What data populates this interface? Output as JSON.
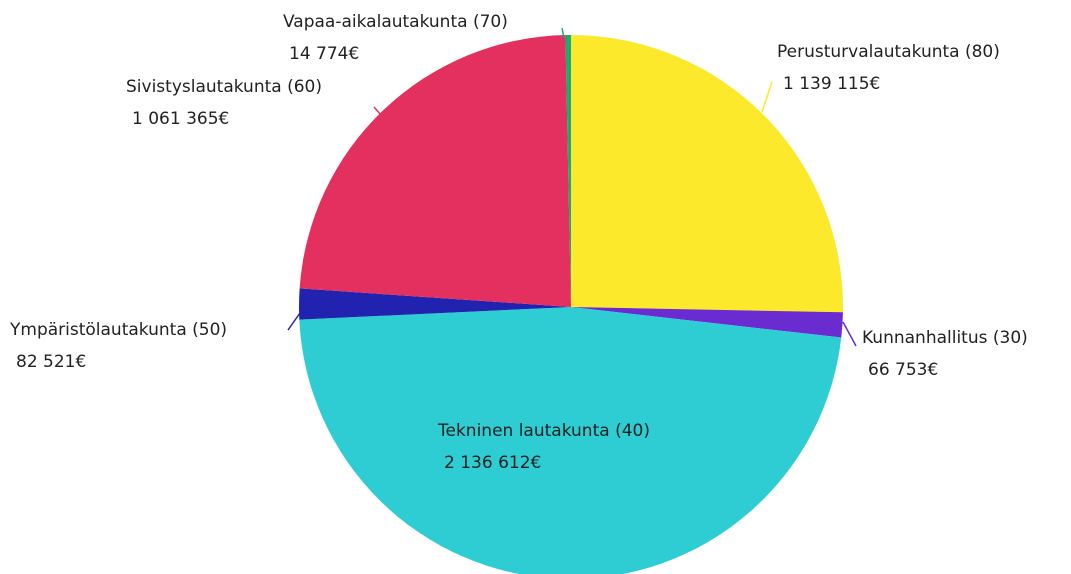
{
  "chart_data": {
    "type": "pie",
    "categories": [
      "Perusturvalautakunta (80)",
      "Kunnanhallitus (30)",
      "Tekninen lautakunta (40)",
      "Ympäristölautakunta (50)",
      "Sivistyslautakunta (60)",
      "Vapaa-aikalautakunta (70)"
    ],
    "values": [
      1139115,
      66753,
      2136612,
      82521,
      1061365,
      14774
    ],
    "value_labels": [
      "1 139 115€",
      "66 753€",
      "2 136 612€",
      "82 521€",
      "1 061 365€",
      "14 774€"
    ],
    "colors": [
      "#fde92b",
      "#6a2bd0",
      "#2ecdd3",
      "#2222b0",
      "#e4305f",
      "#1aab6e"
    ]
  }
}
